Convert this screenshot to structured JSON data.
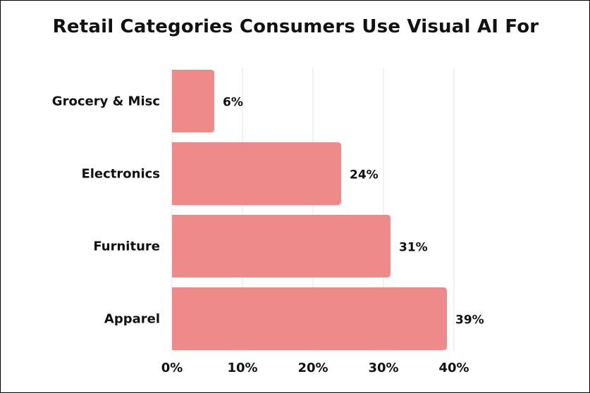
{
  "chart_data": {
    "type": "bar",
    "orientation": "horizontal",
    "title": "Retail Categories Consumers Use Visual AI For",
    "categories": [
      "Grocery & Misc",
      "Electronics",
      "Furniture",
      "Apparel"
    ],
    "values": [
      6,
      24,
      31,
      39
    ],
    "value_labels": [
      "6%",
      "24%",
      "31%",
      "39%"
    ],
    "xlim": [
      0,
      40
    ],
    "xticks": [
      0,
      10,
      20,
      30,
      40
    ],
    "xtick_labels": [
      "0%",
      "10%",
      "20%",
      "30%",
      "40%"
    ],
    "xlabel": "",
    "ylabel": "",
    "grid": "vertical",
    "legend": "none",
    "bar_color": "#ee8a8a",
    "grid_color": "#e6e6e6"
  }
}
